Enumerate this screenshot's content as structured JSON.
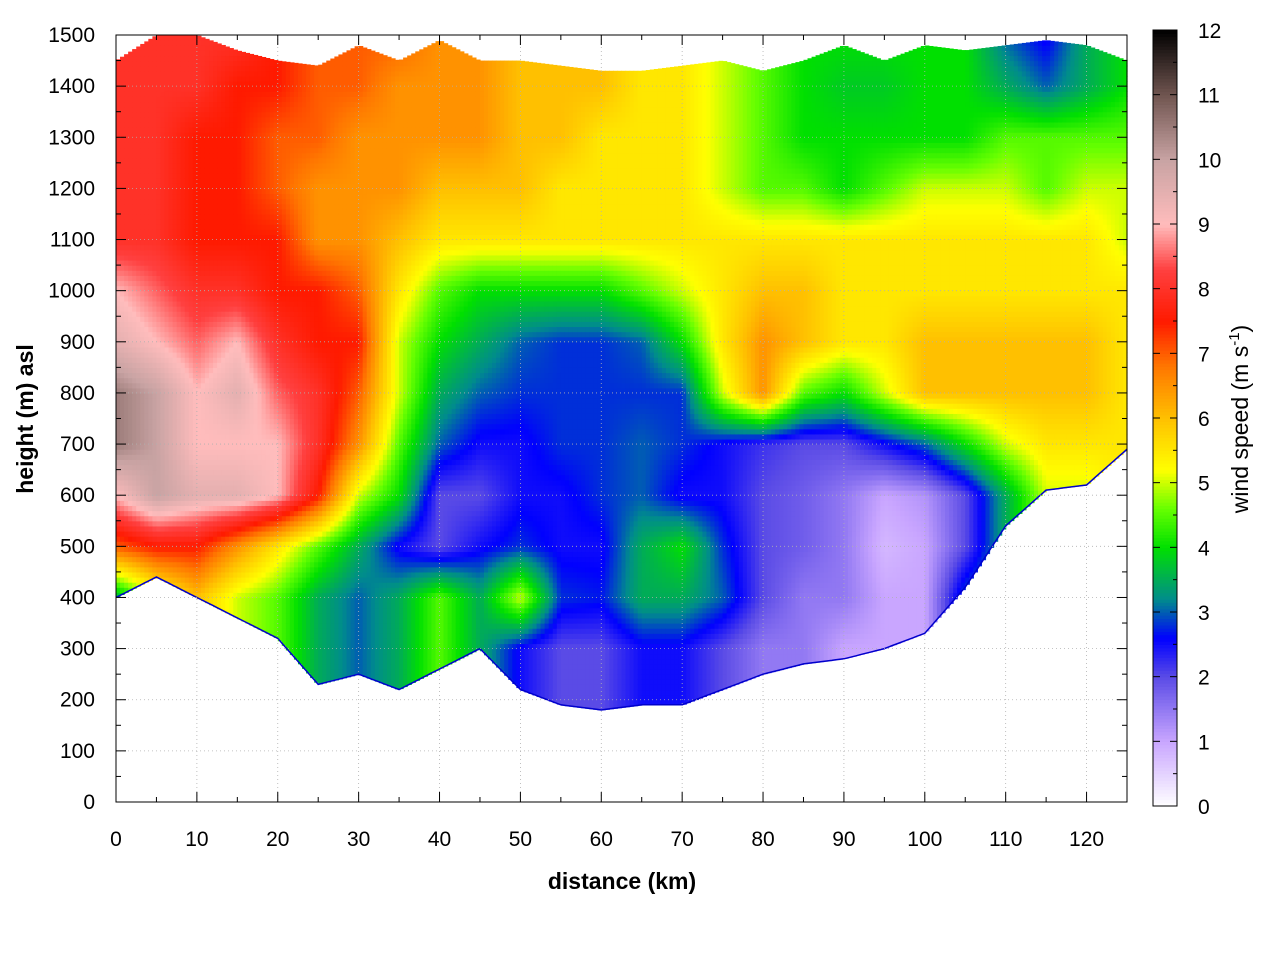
{
  "chart_data": {
    "type": "heatmap",
    "xlabel": "distance (km)",
    "ylabel": "height (m) asl",
    "xlim": [
      0,
      125
    ],
    "ylim": [
      0,
      1500
    ],
    "x_ticks": [
      0,
      10,
      20,
      30,
      40,
      50,
      60,
      70,
      80,
      90,
      100,
      110,
      120
    ],
    "x_tick_labels": [
      "0",
      "10",
      "20",
      "30",
      "40",
      "50",
      "60",
      "70",
      "80",
      "90",
      "100",
      "110",
      "120"
    ],
    "y_ticks": [
      0,
      100,
      200,
      300,
      400,
      500,
      600,
      700,
      800,
      900,
      1000,
      1100,
      1200,
      1300,
      1400,
      1500
    ],
    "y_tick_labels": [
      "0",
      "100",
      "200",
      "300",
      "400",
      "500",
      "600",
      "700",
      "800",
      "900",
      "1000",
      "1100",
      "1200",
      "1300",
      "1400",
      "1500"
    ],
    "grid": true,
    "colorbar": {
      "label_main": "wind speed (m s",
      "label_sup": "-1",
      "label_close": ")",
      "range": [
        0,
        12
      ],
      "ticks": [
        0,
        1,
        2,
        3,
        4,
        5,
        6,
        7,
        8,
        9,
        10,
        11,
        12
      ],
      "tick_labels": [
        "0",
        "1",
        "2",
        "3",
        "4",
        "5",
        "6",
        "7",
        "8",
        "9",
        "10",
        "11",
        "12"
      ],
      "colormap": [
        [
          0,
          "#ffffff"
        ],
        [
          1,
          "#c9a6ff"
        ],
        [
          2,
          "#5a4be6"
        ],
        [
          2.6,
          "#0000ff"
        ],
        [
          3.2,
          "#008c8c"
        ],
        [
          4,
          "#00e000"
        ],
        [
          4.6,
          "#66ff00"
        ],
        [
          5.2,
          "#ffff00"
        ],
        [
          6,
          "#ffc000"
        ],
        [
          6.8,
          "#ff7700"
        ],
        [
          7.5,
          "#ff1a00"
        ],
        [
          8.3,
          "#ff4040"
        ],
        [
          9,
          "#ffbcbc"
        ],
        [
          10,
          "#c8a3a3"
        ],
        [
          11,
          "#705550"
        ],
        [
          12,
          "#000000"
        ]
      ]
    },
    "x_samples": [
      0,
      5,
      10,
      15,
      20,
      25,
      30,
      35,
      40,
      45,
      50,
      55,
      60,
      65,
      70,
      75,
      80,
      85,
      90,
      95,
      100,
      105,
      110,
      115,
      120,
      125
    ],
    "terrain_height": [
      400,
      440,
      400,
      360,
      320,
      230,
      250,
      220,
      260,
      300,
      220,
      190,
      180,
      190,
      190,
      220,
      250,
      270,
      280,
      300,
      330,
      420,
      540,
      610,
      620,
      690
    ],
    "top_height": [
      1450,
      1500,
      1500,
      1470,
      1450,
      1440,
      1480,
      1450,
      1490,
      1450,
      1450,
      1440,
      1430,
      1430,
      1440,
      1450,
      1430,
      1450,
      1480,
      1450,
      1480,
      1470,
      1480,
      1490,
      1480,
      1450
    ],
    "z_levels": [
      300,
      400,
      500,
      600,
      700,
      800,
      900,
      1000,
      1100,
      1200,
      1300,
      1400,
      1500
    ],
    "wind_speed": [
      [
        null,
        null,
        null,
        null,
        null,
        null,
        null,
        null,
        null,
        3.5,
        2.5,
        2.0,
        2.0,
        2.5,
        2.5,
        2.0,
        1.5,
        1.5,
        1.0,
        1.0,
        null,
        null,
        null,
        null,
        null,
        null
      ],
      [
        3.5,
        5.0,
        6.0,
        5.0,
        4.5,
        3.5,
        3.0,
        3.5,
        4.5,
        3.5,
        5.0,
        2.8,
        2.7,
        3.5,
        3.5,
        3.0,
        2.0,
        1.5,
        1.5,
        1.0,
        1.0,
        3.0,
        null,
        null,
        null,
        null
      ],
      [
        7.0,
        7.5,
        7.5,
        6.5,
        5.5,
        4.5,
        3.5,
        2.5,
        2.0,
        2.5,
        2.8,
        2.5,
        2.5,
        3.5,
        4.0,
        2.8,
        2.0,
        1.8,
        1.5,
        0.8,
        1.0,
        2.0,
        null,
        null,
        null,
        null
      ],
      [
        9.0,
        10.0,
        9.5,
        9.5,
        9.0,
        7.5,
        5.0,
        4.0,
        2.0,
        2.0,
        2.5,
        2.5,
        2.8,
        3.0,
        2.5,
        2.5,
        2.0,
        1.8,
        1.5,
        1.0,
        1.2,
        2.0,
        3.5,
        5.0,
        5.0,
        null
      ],
      [
        10.5,
        10.0,
        9.0,
        9.0,
        9.0,
        8.0,
        6.5,
        4.5,
        3.0,
        2.5,
        2.5,
        2.8,
        2.8,
        3.0,
        2.8,
        2.5,
        2.2,
        2.0,
        2.0,
        2.5,
        3.0,
        4.0,
        5.0,
        5.5,
        5.5,
        5.5
      ],
      [
        10.5,
        10.0,
        9.0,
        9.5,
        8.5,
        8.0,
        7.0,
        5.0,
        3.5,
        3.0,
        2.8,
        2.8,
        2.8,
        2.8,
        2.8,
        5.0,
        6.5,
        4.5,
        4.0,
        5.0,
        6.0,
        6.0,
        6.0,
        6.0,
        6.0,
        5.5
      ],
      [
        9.5,
        9.0,
        8.5,
        9.0,
        8.0,
        7.5,
        7.5,
        5.0,
        4.0,
        3.5,
        3.0,
        2.8,
        2.8,
        3.0,
        4.0,
        5.5,
        6.5,
        6.0,
        5.5,
        5.5,
        6.0,
        6.0,
        6.0,
        6.0,
        6.0,
        5.5
      ],
      [
        9.0,
        8.5,
        8.0,
        8.0,
        7.5,
        7.5,
        7.0,
        5.5,
        4.5,
        4.0,
        4.0,
        4.0,
        4.0,
        4.5,
        5.0,
        5.5,
        6.0,
        6.0,
        5.5,
        5.5,
        5.5,
        5.5,
        5.5,
        5.5,
        5.5,
        5.5
      ],
      [
        8.0,
        8.0,
        7.5,
        7.5,
        7.5,
        6.5,
        6.5,
        6.0,
        5.5,
        5.5,
        5.5,
        5.5,
        5.5,
        5.5,
        5.5,
        5.5,
        5.5,
        5.5,
        5.5,
        5.5,
        5.5,
        5.5,
        5.5,
        5.5,
        5.5,
        5.0
      ],
      [
        8.0,
        8.0,
        7.5,
        7.5,
        7.0,
        6.5,
        6.5,
        6.5,
        6.0,
        6.0,
        6.0,
        5.5,
        5.5,
        5.5,
        5.5,
        5.0,
        4.5,
        4.5,
        4.0,
        4.5,
        5.0,
        5.0,
        5.0,
        4.5,
        5.0,
        5.0
      ],
      [
        8.0,
        8.0,
        7.5,
        7.5,
        7.0,
        7.0,
        6.5,
        6.5,
        6.5,
        6.5,
        6.0,
        6.0,
        5.5,
        5.5,
        5.5,
        5.0,
        4.5,
        4.0,
        4.0,
        4.0,
        4.0,
        4.0,
        4.5,
        4.5,
        4.5,
        4.5
      ],
      [
        8.0,
        8.0,
        8.0,
        7.5,
        7.5,
        7.0,
        7.0,
        6.5,
        6.5,
        6.5,
        6.0,
        6.0,
        6.0,
        5.5,
        5.5,
        5.0,
        4.5,
        4.0,
        3.8,
        3.8,
        4.0,
        4.0,
        3.5,
        3.0,
        3.5,
        4.0
      ],
      [
        8.0,
        8.0,
        8.0,
        8.0,
        7.5,
        7.0,
        7.0,
        7.0,
        6.5,
        6.5,
        6.0,
        6.0,
        6.0,
        5.5,
        5.5,
        5.0,
        4.5,
        4.0,
        4.0,
        4.0,
        4.0,
        4.0,
        3.0,
        2.5,
        3.5,
        4.0
      ]
    ]
  }
}
